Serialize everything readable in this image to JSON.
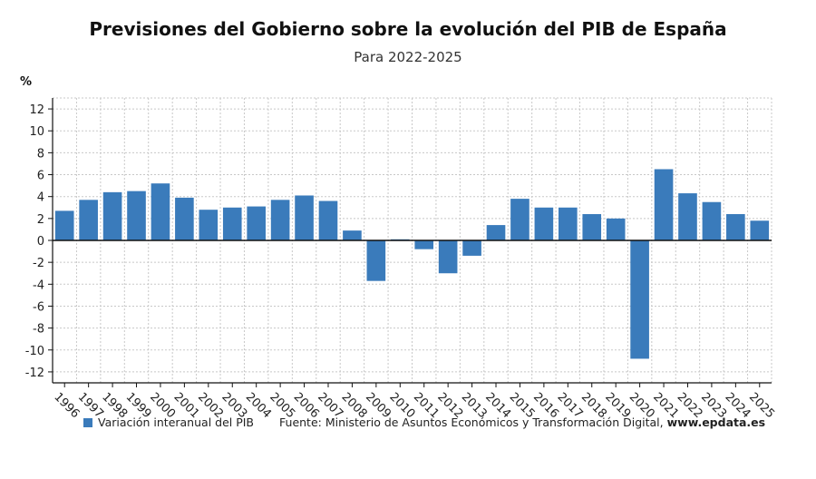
{
  "colors": {
    "bar": "#3a7bbb",
    "grid": "#c8c8c8",
    "axis": "#111111"
  },
  "chart_data": {
    "type": "bar",
    "title": "Previsiones del Gobierno sobre la evolución del PIB de España",
    "subtitle": "Para 2022-2025",
    "ylabel": "%",
    "categories": [
      "1996",
      "1997",
      "1998",
      "1999",
      "2000",
      "2001",
      "2002",
      "2003",
      "2004",
      "2005",
      "2006",
      "2007",
      "2008",
      "2009",
      "2010",
      "2011",
      "2012",
      "2013",
      "2014",
      "2015",
      "2016",
      "2017",
      "2018",
      "2019",
      "2020",
      "2021",
      "2022",
      "2023",
      "2024",
      "2025"
    ],
    "series": [
      {
        "name": "Variación interanual del PIB",
        "values": [
          2.7,
          3.7,
          4.4,
          4.5,
          5.2,
          3.9,
          2.8,
          3.0,
          3.1,
          3.7,
          4.1,
          3.6,
          0.9,
          -3.7,
          0.1,
          -0.8,
          -3.0,
          -1.4,
          1.4,
          3.8,
          3.0,
          3.0,
          2.4,
          2.0,
          -10.8,
          6.5,
          4.3,
          3.5,
          2.4,
          1.8
        ]
      }
    ],
    "yticks": [
      12,
      10,
      8,
      6,
      4,
      2,
      0,
      -2,
      -4,
      -6,
      -8,
      -10,
      -12
    ],
    "ylim": [
      -13,
      13
    ],
    "grid": true,
    "legend_position": "bottom-left"
  },
  "footer": {
    "legend_label": "Variación interanual del PIB",
    "source": "Fuente: Ministerio de Asuntos Económicos y Transformación Digital,",
    "website": "www.epdata.es"
  }
}
